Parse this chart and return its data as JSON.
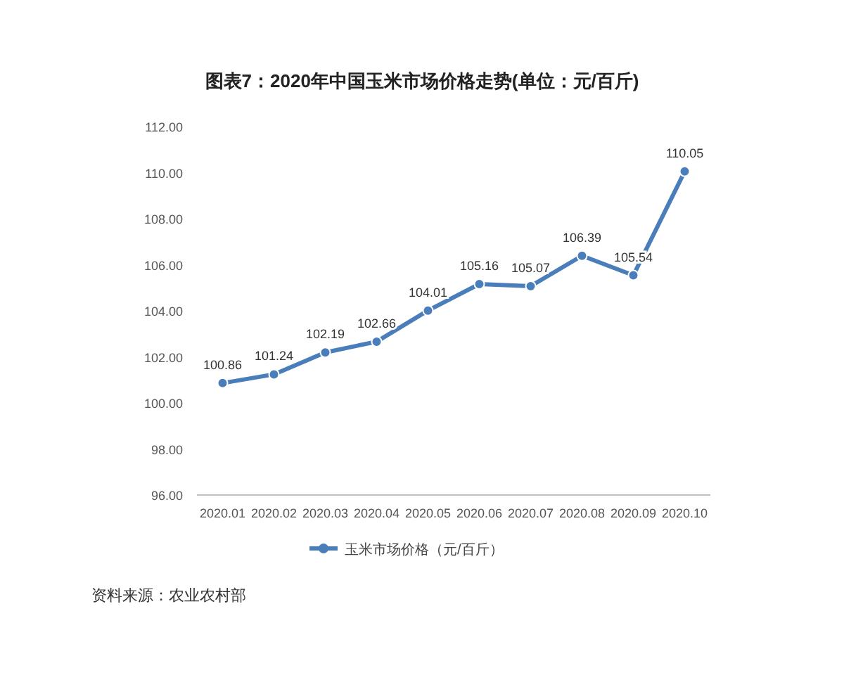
{
  "chart_data": {
    "type": "line",
    "title": "图表7：2020年中国玉米市场价格走势(单位：元/百斤)",
    "categories": [
      "2020.01",
      "2020.02",
      "2020.03",
      "2020.04",
      "2020.05",
      "2020.06",
      "2020.07",
      "2020.08",
      "2020.09",
      "2020.10"
    ],
    "series": [
      {
        "name": "玉米市场价格（元/百斤）",
        "color": "#4a7ebb",
        "values": [
          100.86,
          101.24,
          102.19,
          102.66,
          104.01,
          105.16,
          105.07,
          106.39,
          105.54,
          110.05
        ]
      }
    ],
    "ylim": [
      96,
      112
    ],
    "yticks": [
      {
        "value": 96,
        "label": "96.00"
      },
      {
        "value": 98,
        "label": "98.00"
      },
      {
        "value": 100,
        "label": "100.00"
      },
      {
        "value": 102,
        "label": "102.00"
      },
      {
        "value": 104,
        "label": "104.00"
      },
      {
        "value": 106,
        "label": "106.00"
      },
      {
        "value": 108,
        "label": "108.00"
      },
      {
        "value": 110,
        "label": "110.00"
      },
      {
        "value": 112,
        "label": "112.00"
      }
    ],
    "data_labels": true,
    "marker": "circle",
    "line_style": "solid",
    "legend": "bottom",
    "grid": false,
    "annotations": [
      "资料来源：农业农村部"
    ]
  }
}
